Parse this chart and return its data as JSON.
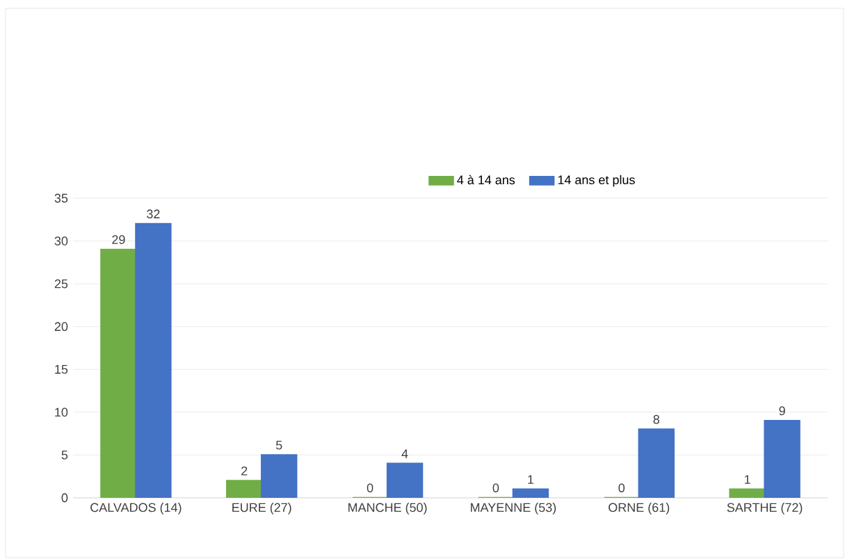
{
  "chart_data": {
    "type": "bar",
    "categories": [
      "CALVADOS (14)",
      "EURE (27)",
      "MANCHE (50)",
      "MAYENNE (53)",
      "ORNE (61)",
      "SARTHE (72)"
    ],
    "series": [
      {
        "name": "4 à 14 ans",
        "color": "#70ad47",
        "values": [
          29,
          2,
          0,
          0,
          0,
          1
        ]
      },
      {
        "name": "14 ans et plus",
        "color": "#4472c4",
        "values": [
          32,
          5,
          4,
          1,
          8,
          9
        ]
      }
    ],
    "ylim": [
      0,
      35
    ],
    "yticks": [
      0,
      5,
      10,
      15,
      20,
      25,
      30,
      35
    ],
    "grid": "y",
    "legend": "top",
    "data_labels": true
  }
}
